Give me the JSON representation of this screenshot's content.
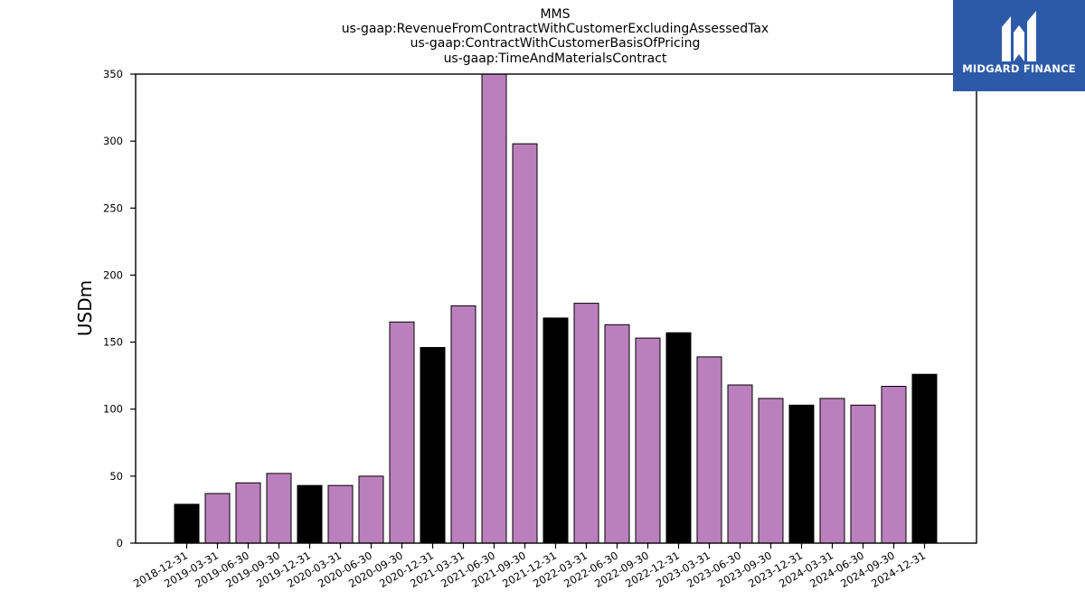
{
  "logo": {
    "text": "MIDGARD FINANCE",
    "background_color": "#2d5aa8"
  },
  "chart_data": {
    "type": "bar",
    "title_lines": [
      "MMS",
      "us-gaap:RevenueFromContractWithCustomerExcludingAssessedTax",
      "us-gaap:ContractWithCustomerBasisOfPricing",
      "us-gaap:TimeAndMaterialsContract"
    ],
    "xlabel": "",
    "ylabel": "USDm",
    "ylim": [
      0,
      350
    ],
    "yticks": [
      0,
      50,
      100,
      150,
      200,
      250,
      300,
      350
    ],
    "grid": false,
    "colors": {
      "quarter": "#bb7fbd",
      "year_end": "#000000",
      "edge": "#000000"
    },
    "categories": [
      "2018-12-31",
      "2019-03-31",
      "2019-06-30",
      "2019-09-30",
      "2019-12-31",
      "2020-03-31",
      "2020-06-30",
      "2020-09-30",
      "2020-12-31",
      "2021-03-31",
      "2021-06-30",
      "2021-09-30",
      "2021-12-31",
      "2022-03-31",
      "2022-06-30",
      "2022-09-30",
      "2022-12-31",
      "2023-03-31",
      "2023-06-30",
      "2023-09-30",
      "2023-12-31",
      "2024-03-31",
      "2024-06-30",
      "2024-09-30",
      "2024-12-31"
    ],
    "values": [
      29,
      37,
      45,
      52,
      43,
      43,
      50,
      165,
      146,
      177,
      353,
      298,
      168,
      179,
      163,
      153,
      157,
      139,
      118,
      108,
      103,
      108,
      103,
      117,
      126
    ],
    "year_end": [
      true,
      false,
      false,
      false,
      true,
      false,
      false,
      false,
      true,
      false,
      false,
      false,
      true,
      false,
      false,
      false,
      true,
      false,
      false,
      false,
      true,
      false,
      false,
      false,
      true
    ]
  }
}
